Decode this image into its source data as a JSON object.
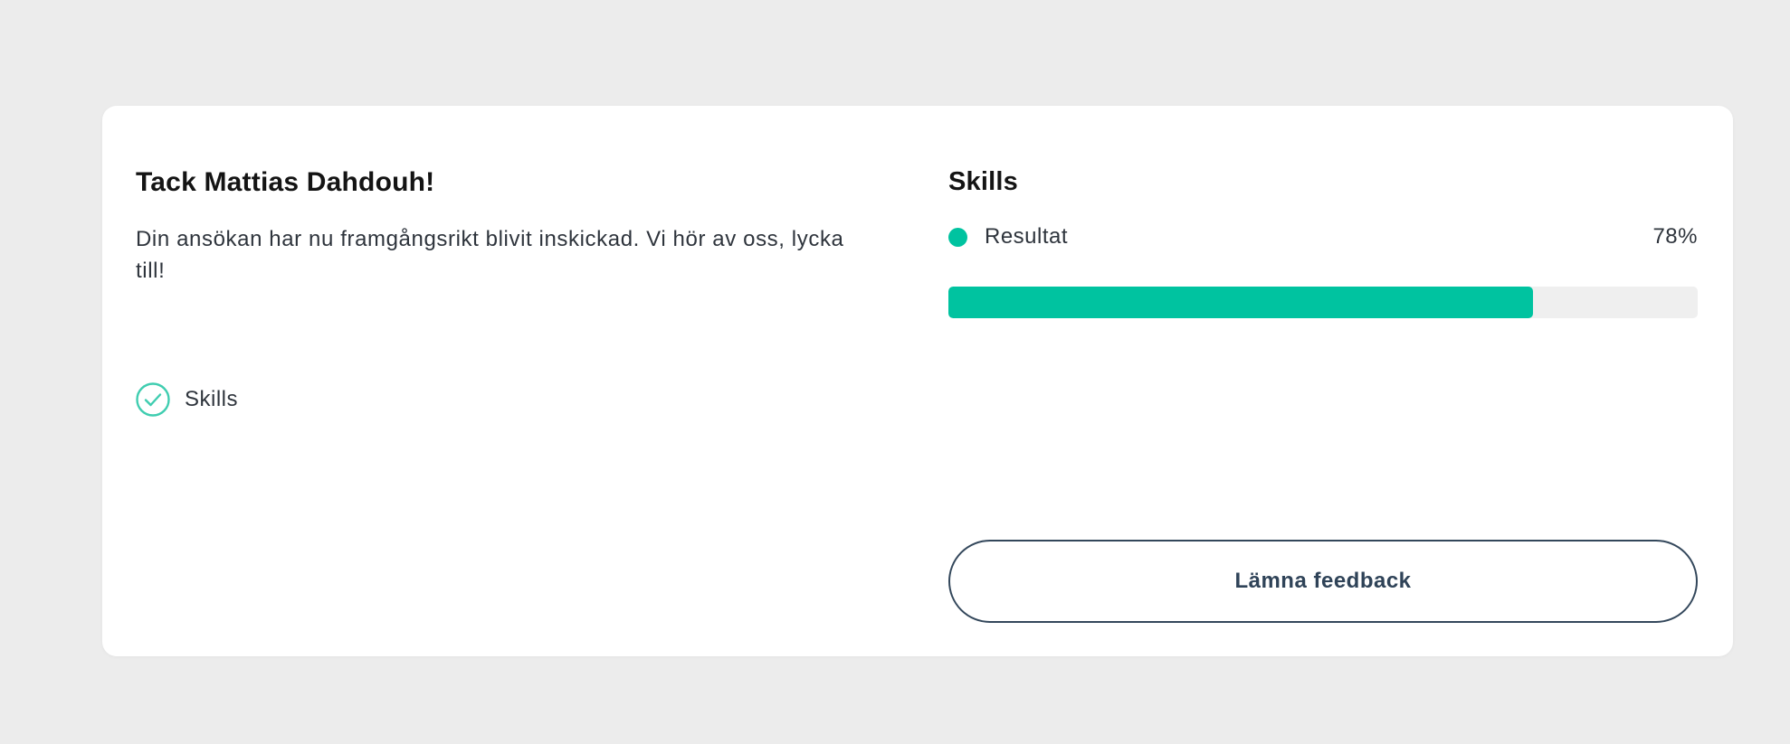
{
  "page": {
    "background_color": "#ececec",
    "card_background_color": "#ffffff"
  },
  "colors": {
    "accent_teal": "#00c3a0",
    "progress_track_gray": "#efefef",
    "button_border_slate": "#33475b",
    "text_dark": "#2e343c"
  },
  "confirmation": {
    "title": "Tack Mattias Dahdouh!",
    "message": "Din ansökan har nu framgångsrikt blivit inskickad. Vi hör av oss, lycka till!",
    "completed_step": {
      "label": "Skills",
      "icon": "check-circle-icon"
    }
  },
  "results": {
    "title": "Skills",
    "legend": {
      "label": "Resultat",
      "value": "78%",
      "dot_icon": "legend-dot-icon"
    },
    "progress": {
      "percent": 78
    },
    "feedback_button_label": "Lämna feedback"
  }
}
